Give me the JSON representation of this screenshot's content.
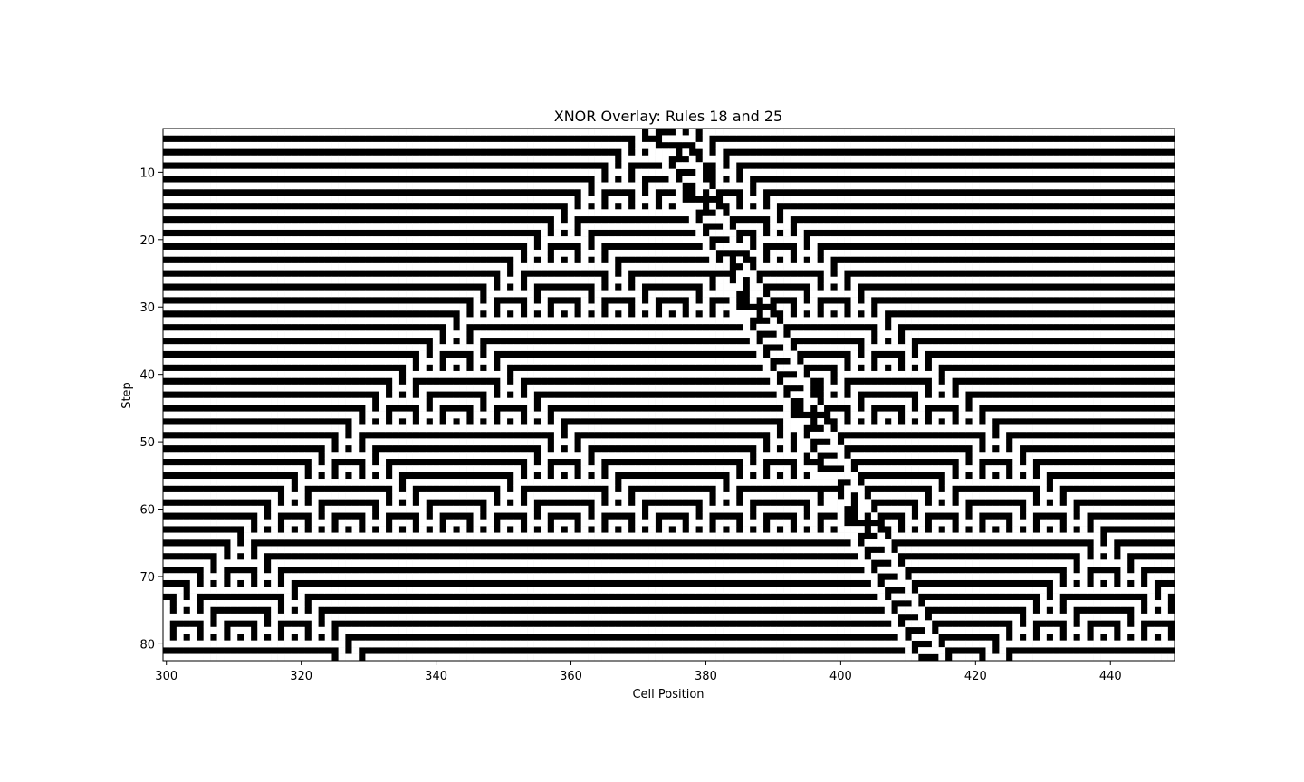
{
  "chart_data": {
    "type": "heatmap",
    "title": "XNOR Overlay: Rules 18 and 25",
    "xlabel": "Cell Position",
    "ylabel": "Step",
    "xlim": [
      299.5,
      449.5
    ],
    "ylim": [
      82.5,
      3.5
    ],
    "x_ticks": [
      300,
      320,
      340,
      360,
      380,
      400,
      420,
      440
    ],
    "y_ticks": [
      10,
      20,
      30,
      40,
      50,
      60,
      70,
      80
    ],
    "colormap": {
      "0": "#000000",
      "1": "#ffffff"
    },
    "description_of_values": "cell = XNOR(rule18_state, rule25_state); steps 4-82, cells 300-449",
    "colors": {
      "on": "#ffffff",
      "off": "#000000",
      "frame": "#000000"
    }
  }
}
